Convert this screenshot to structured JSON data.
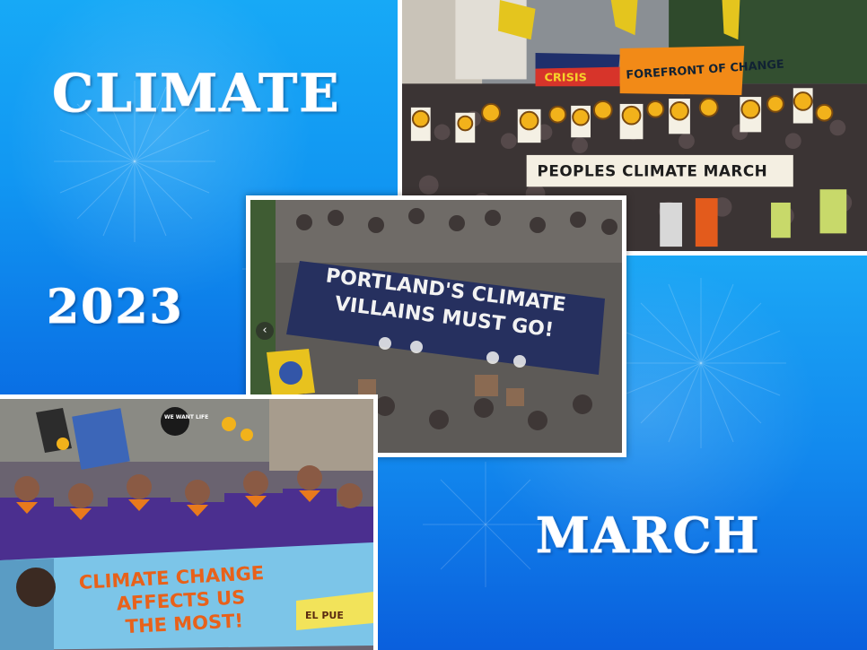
{
  "title_words": {
    "climate": "CLIMATE",
    "year": "2023",
    "march": "MARCH"
  },
  "photos": {
    "top": {
      "banner_main": "PEOPLES CLIMATE MARCH",
      "banner_upper": "FOREFRONT OF CHANGE",
      "banner_left": "CRISIS"
    },
    "middle": {
      "banner_line1": "PORTLAND'S CLIMATE",
      "banner_line2": "VILLAINS MUST GO!",
      "nav_arrow": "‹"
    },
    "bottom": {
      "banner_line1": "CLIMATE CHANGE",
      "banner_line2": "AFFECTS US",
      "banner_line3": "THE MOST!",
      "banner_tag": "EL PUE",
      "sign_text": "WE WANT LIFE"
    }
  },
  "colors": {
    "panel_blue": "#1197f2",
    "panel_deep": "#0a6fe4",
    "title_text": "#ffffff"
  }
}
